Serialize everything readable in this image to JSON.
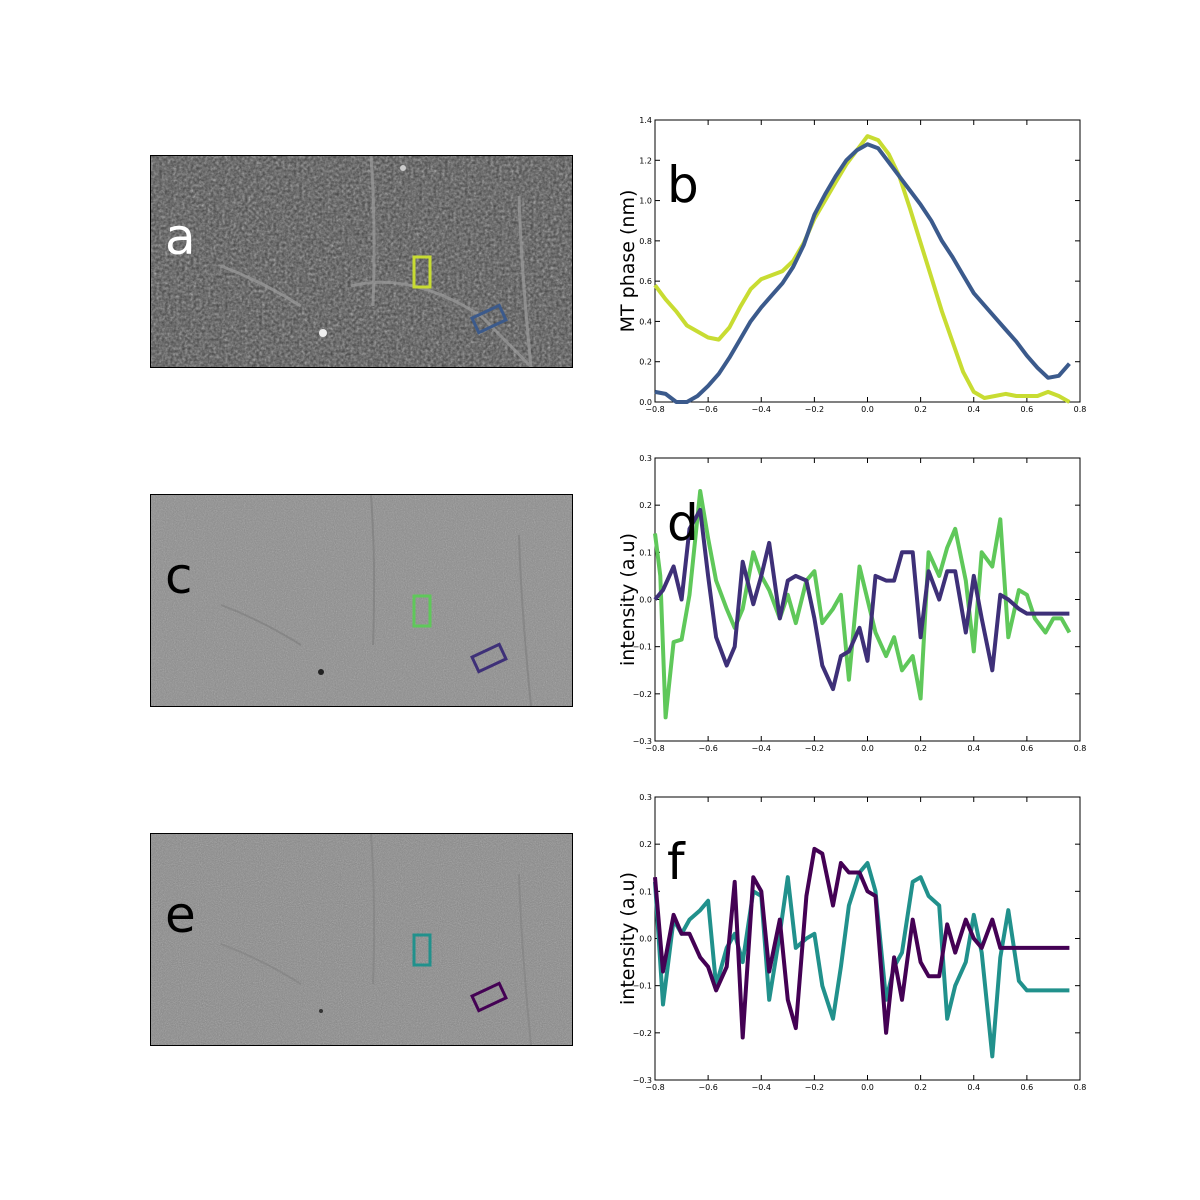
{
  "figure": {
    "panels": [
      {
        "letter": "a",
        "kind": "micrograph",
        "variant": "phase",
        "box_colors": [
          "#c8dc32",
          "#3b5a8c"
        ]
      },
      {
        "letter": "c",
        "kind": "micrograph",
        "variant": "raw",
        "box_colors": [
          "#5fc85a",
          "#3e3078"
        ]
      },
      {
        "letter": "e",
        "kind": "micrograph",
        "variant": "raw",
        "box_colors": [
          "#21918c",
          "#440154"
        ]
      }
    ]
  },
  "chart_data": [
    {
      "type": "line",
      "panel_label": "b",
      "title": "",
      "xlabel": "",
      "ylabel": "MT phase (nm)",
      "xlim": [
        -0.8,
        0.8
      ],
      "ylim": [
        0.0,
        1.4
      ],
      "xticks": [
        "−0.8",
        "−0.6",
        "−0.4",
        "−0.2",
        "0.0",
        "0.2",
        "0.4",
        "0.6",
        "0.8"
      ],
      "yticks": [
        "0.0",
        "0.2",
        "0.4",
        "0.6",
        "0.8",
        "1.0",
        "1.2",
        "1.4"
      ],
      "series": [
        {
          "name": "yellow-green",
          "color": "#c8dc32",
          "x": [
            -0.8,
            -0.76,
            -0.72,
            -0.68,
            -0.64,
            -0.6,
            -0.56,
            -0.52,
            -0.48,
            -0.44,
            -0.4,
            -0.36,
            -0.32,
            -0.28,
            -0.24,
            -0.2,
            -0.16,
            -0.12,
            -0.08,
            -0.04,
            0.0,
            0.04,
            0.08,
            0.12,
            0.16,
            0.2,
            0.24,
            0.28,
            0.32,
            0.36,
            0.4,
            0.44,
            0.48,
            0.52,
            0.56,
            0.6,
            0.64,
            0.68,
            0.72,
            0.76
          ],
          "values": [
            0.58,
            0.51,
            0.45,
            0.38,
            0.35,
            0.32,
            0.31,
            0.37,
            0.47,
            0.56,
            0.61,
            0.63,
            0.65,
            0.7,
            0.79,
            0.91,
            1.0,
            1.09,
            1.18,
            1.25,
            1.32,
            1.3,
            1.23,
            1.12,
            0.96,
            0.79,
            0.62,
            0.45,
            0.3,
            0.15,
            0.05,
            0.02,
            0.03,
            0.04,
            0.03,
            0.03,
            0.03,
            0.05,
            0.03,
            0.0
          ]
        },
        {
          "name": "blue",
          "color": "#3b5a8c",
          "x": [
            -0.8,
            -0.76,
            -0.72,
            -0.68,
            -0.64,
            -0.6,
            -0.56,
            -0.52,
            -0.48,
            -0.44,
            -0.4,
            -0.36,
            -0.32,
            -0.28,
            -0.24,
            -0.2,
            -0.16,
            -0.12,
            -0.08,
            -0.04,
            0.0,
            0.04,
            0.08,
            0.12,
            0.16,
            0.2,
            0.24,
            0.28,
            0.32,
            0.36,
            0.4,
            0.44,
            0.48,
            0.52,
            0.56,
            0.6,
            0.64,
            0.68,
            0.72,
            0.76
          ],
          "values": [
            0.05,
            0.04,
            0.0,
            0.0,
            0.03,
            0.08,
            0.14,
            0.22,
            0.31,
            0.4,
            0.47,
            0.53,
            0.59,
            0.67,
            0.78,
            0.93,
            1.03,
            1.12,
            1.2,
            1.25,
            1.28,
            1.26,
            1.19,
            1.12,
            1.05,
            0.98,
            0.9,
            0.8,
            0.72,
            0.63,
            0.54,
            0.48,
            0.42,
            0.36,
            0.3,
            0.23,
            0.17,
            0.12,
            0.13,
            0.19
          ]
        }
      ]
    },
    {
      "type": "line",
      "panel_label": "d",
      "title": "",
      "xlabel": "",
      "ylabel": "intensity (a.u)",
      "xlim": [
        -0.8,
        0.8
      ],
      "ylim": [
        -0.3,
        0.3
      ],
      "xticks": [
        "−0.8",
        "−0.6",
        "−0.4",
        "−0.2",
        "0.0",
        "0.2",
        "0.4",
        "0.6",
        "0.8"
      ],
      "yticks": [
        "−0.3",
        "−0.2",
        "−0.1",
        "0.0",
        "0.1",
        "0.2",
        "0.3"
      ],
      "series": [
        {
          "name": "green",
          "color": "#5fc85a",
          "x": [
            -0.8,
            -0.78,
            -0.76,
            -0.73,
            -0.7,
            -0.67,
            -0.63,
            -0.6,
            -0.57,
            -0.53,
            -0.5,
            -0.47,
            -0.43,
            -0.4,
            -0.37,
            -0.33,
            -0.3,
            -0.27,
            -0.23,
            -0.2,
            -0.17,
            -0.13,
            -0.1,
            -0.07,
            -0.03,
            0.0,
            0.03,
            0.07,
            0.1,
            0.13,
            0.17,
            0.2,
            0.23,
            0.27,
            0.3,
            0.33,
            0.37,
            0.4,
            0.43,
            0.47,
            0.5,
            0.53,
            0.57,
            0.6,
            0.63,
            0.67,
            0.7,
            0.73,
            0.76
          ],
          "values": [
            0.14,
            0.05,
            -0.25,
            -0.09,
            -0.085,
            0.01,
            0.23,
            0.13,
            0.04,
            -0.02,
            -0.06,
            -0.02,
            0.1,
            0.05,
            0.02,
            -0.04,
            0.01,
            -0.05,
            0.04,
            0.06,
            -0.05,
            -0.02,
            0.01,
            -0.17,
            0.07,
            0.0,
            -0.07,
            -0.12,
            -0.08,
            -0.15,
            -0.12,
            -0.21,
            0.1,
            0.05,
            0.11,
            0.15,
            0.04,
            -0.11,
            0.1,
            0.07,
            0.17,
            -0.08,
            0.02,
            0.01,
            -0.04,
            -0.07,
            -0.04,
            -0.04,
            -0.07
          ]
        },
        {
          "name": "purple",
          "color": "#3e3078",
          "x": [
            -0.8,
            -0.77,
            -0.73,
            -0.7,
            -0.67,
            -0.63,
            -0.6,
            -0.57,
            -0.53,
            -0.5,
            -0.47,
            -0.43,
            -0.4,
            -0.37,
            -0.33,
            -0.3,
            -0.27,
            -0.23,
            -0.2,
            -0.17,
            -0.13,
            -0.1,
            -0.07,
            -0.03,
            0.0,
            0.03,
            0.07,
            0.1,
            0.13,
            0.17,
            0.2,
            0.23,
            0.27,
            0.3,
            0.33,
            0.37,
            0.4,
            0.43,
            0.47,
            0.5,
            0.53,
            0.57,
            0.6,
            0.63,
            0.67,
            0.7,
            0.73,
            0.76
          ],
          "values": [
            0.0,
            0.02,
            0.07,
            0.0,
            0.15,
            0.19,
            0.05,
            -0.08,
            -0.14,
            -0.1,
            0.08,
            -0.01,
            0.05,
            0.12,
            -0.04,
            0.04,
            0.05,
            0.04,
            -0.04,
            -0.14,
            -0.19,
            -0.12,
            -0.11,
            -0.06,
            -0.13,
            0.05,
            0.04,
            0.04,
            0.1,
            0.1,
            -0.08,
            0.06,
            0.0,
            0.06,
            0.06,
            -0.07,
            0.05,
            -0.04,
            -0.15,
            0.01,
            0.0,
            -0.02,
            -0.03,
            -0.03,
            -0.03,
            -0.03,
            -0.03,
            -0.03
          ]
        }
      ]
    },
    {
      "type": "line",
      "panel_label": "f",
      "title": "",
      "xlabel": "",
      "ylabel": "intensity (a.u)",
      "xlim": [
        -0.8,
        0.8
      ],
      "ylim": [
        -0.3,
        0.3
      ],
      "xticks": [
        "−0.8",
        "−0.6",
        "−0.4",
        "−0.2",
        "0.0",
        "0.2",
        "0.4",
        "0.6",
        "0.8"
      ],
      "yticks": [
        "−0.3",
        "−0.2",
        "−0.1",
        "0.0",
        "0.1",
        "0.2",
        "0.3"
      ],
      "series": [
        {
          "name": "teal",
          "color": "#21918c",
          "x": [
            -0.8,
            -0.77,
            -0.73,
            -0.7,
            -0.67,
            -0.63,
            -0.6,
            -0.57,
            -0.53,
            -0.5,
            -0.47,
            -0.43,
            -0.4,
            -0.37,
            -0.33,
            -0.3,
            -0.27,
            -0.23,
            -0.2,
            -0.17,
            -0.13,
            -0.1,
            -0.07,
            -0.03,
            0.0,
            0.03,
            0.07,
            0.1,
            0.13,
            0.17,
            0.2,
            0.23,
            0.27,
            0.3,
            0.33,
            0.37,
            0.4,
            0.43,
            0.47,
            0.5,
            0.53,
            0.57,
            0.6,
            0.63,
            0.67,
            0.7,
            0.73,
            0.76
          ],
          "values": [
            0.12,
            -0.14,
            0.04,
            0.01,
            0.04,
            0.06,
            0.08,
            -0.1,
            -0.02,
            0.01,
            -0.05,
            0.1,
            0.09,
            -0.13,
            0.01,
            0.13,
            -0.02,
            0.0,
            0.01,
            -0.1,
            -0.17,
            -0.06,
            0.07,
            0.14,
            0.16,
            0.1,
            -0.13,
            -0.06,
            -0.03,
            0.12,
            0.13,
            0.09,
            0.07,
            -0.17,
            -0.1,
            -0.05,
            0.05,
            -0.03,
            -0.25,
            -0.04,
            0.06,
            -0.09,
            -0.11,
            -0.11,
            -0.11,
            -0.11,
            -0.11,
            -0.11
          ]
        },
        {
          "name": "dark-purple",
          "color": "#440154",
          "x": [
            -0.8,
            -0.77,
            -0.73,
            -0.7,
            -0.67,
            -0.63,
            -0.6,
            -0.57,
            -0.53,
            -0.5,
            -0.47,
            -0.43,
            -0.4,
            -0.37,
            -0.33,
            -0.3,
            -0.27,
            -0.23,
            -0.2,
            -0.17,
            -0.13,
            -0.1,
            -0.07,
            -0.03,
            0.0,
            0.03,
            0.07,
            0.1,
            0.13,
            0.17,
            0.2,
            0.23,
            0.27,
            0.3,
            0.33,
            0.37,
            0.4,
            0.43,
            0.47,
            0.5,
            0.53,
            0.57,
            0.6,
            0.63,
            0.67,
            0.7,
            0.73,
            0.76
          ],
          "values": [
            0.13,
            -0.07,
            0.05,
            0.01,
            0.01,
            -0.04,
            -0.06,
            -0.11,
            -0.06,
            0.12,
            -0.21,
            0.13,
            0.1,
            -0.07,
            0.04,
            -0.13,
            -0.19,
            0.09,
            0.19,
            0.18,
            0.07,
            0.16,
            0.14,
            0.14,
            0.1,
            0.09,
            -0.2,
            -0.04,
            -0.13,
            0.04,
            -0.05,
            -0.08,
            -0.08,
            0.03,
            -0.03,
            0.04,
            0.0,
            -0.02,
            0.04,
            -0.02,
            -0.02,
            -0.02,
            -0.02,
            -0.02,
            -0.02,
            -0.02,
            -0.02,
            -0.02
          ]
        }
      ]
    }
  ]
}
